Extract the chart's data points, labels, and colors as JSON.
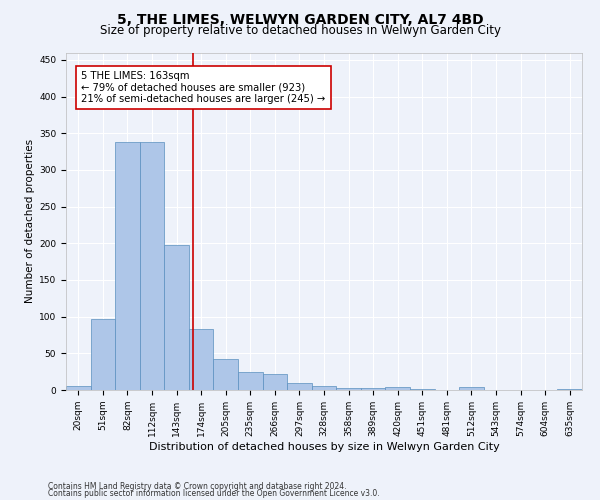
{
  "title": "5, THE LIMES, WELWYN GARDEN CITY, AL7 4BD",
  "subtitle": "Size of property relative to detached houses in Welwyn Garden City",
  "xlabel": "Distribution of detached houses by size in Welwyn Garden City",
  "ylabel": "Number of detached properties",
  "footnote1": "Contains HM Land Registry data © Crown copyright and database right 2024.",
  "footnote2": "Contains public sector information licensed under the Open Government Licence v3.0.",
  "bar_labels": [
    "20sqm",
    "51sqm",
    "82sqm",
    "112sqm",
    "143sqm",
    "174sqm",
    "205sqm",
    "235sqm",
    "266sqm",
    "297sqm",
    "328sqm",
    "358sqm",
    "389sqm",
    "420sqm",
    "451sqm",
    "481sqm",
    "512sqm",
    "543sqm",
    "574sqm",
    "604sqm",
    "635sqm"
  ],
  "bar_values": [
    5,
    97,
    338,
    338,
    197,
    83,
    42,
    25,
    22,
    10,
    5,
    3,
    3,
    4,
    2,
    0,
    4,
    0,
    0,
    0,
    2
  ],
  "bar_color": "#aec6e8",
  "bar_edge_color": "#5a8fbf",
  "background_color": "#eef2fa",
  "grid_color": "#ffffff",
  "vline_x": 4.65,
  "vline_color": "#cc0000",
  "annotation_text": "5 THE LIMES: 163sqm\n← 79% of detached houses are smaller (923)\n21% of semi-detached houses are larger (245) →",
  "annotation_box_color": "#ffffff",
  "annotation_box_edgecolor": "#cc0000",
  "ylim": [
    0,
    460
  ],
  "yticks": [
    0,
    50,
    100,
    150,
    200,
    250,
    300,
    350,
    400,
    450
  ],
  "title_fontsize": 10,
  "subtitle_fontsize": 8.5,
  "xlabel_fontsize": 8,
  "ylabel_fontsize": 7.5,
  "tick_fontsize": 6.5,
  "annotation_fontsize": 7.2,
  "footnote_fontsize": 5.5
}
